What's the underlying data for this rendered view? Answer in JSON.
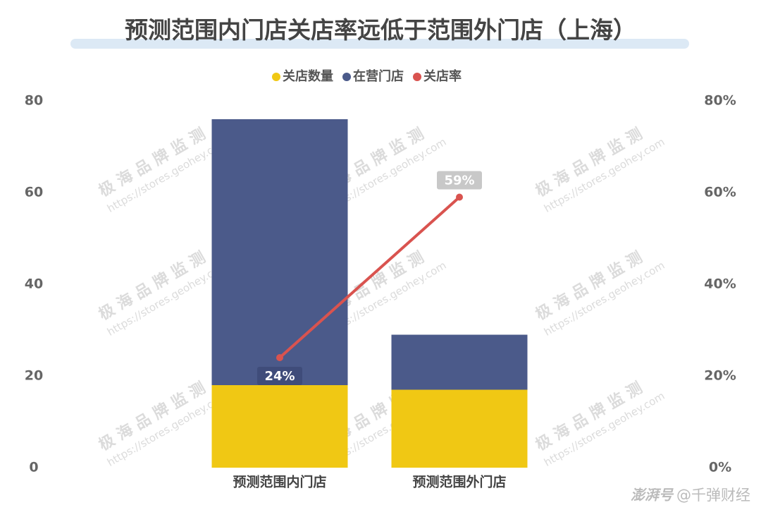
{
  "chart_data": {
    "type": "bar",
    "title": "预测范围内门店关店率远低于范围外门店（上海）",
    "categories": [
      "预测范围内门店",
      "预测范围外门店"
    ],
    "series": [
      {
        "name": "关店数量",
        "color": "#f0c814",
        "values": [
          18,
          17
        ]
      },
      {
        "name": "在营门店",
        "color": "#4b5a8a",
        "values": [
          58,
          12
        ]
      },
      {
        "name": "关店率",
        "color": "#d9534f",
        "type": "line",
        "axis": "y2",
        "values": [
          24,
          59
        ],
        "value_labels": [
          "24%",
          "59%"
        ]
      }
    ],
    "ylim": [
      0,
      80
    ],
    "yticks": [
      0,
      20,
      40,
      60,
      80
    ],
    "y2lim": [
      0,
      80
    ],
    "y2ticks": [
      {
        "value": 0,
        "label": "0%"
      },
      {
        "value": 20,
        "label": "20%"
      },
      {
        "value": 40,
        "label": "40%"
      },
      {
        "value": 60,
        "label": "60%"
      },
      {
        "value": 80,
        "label": "80%"
      }
    ],
    "legend": "top",
    "watermark": [
      "极 海 品 牌 监 测",
      "https://stores.geohey.com"
    ],
    "source_logo": "澎湃号",
    "source": "@千弹财经"
  }
}
